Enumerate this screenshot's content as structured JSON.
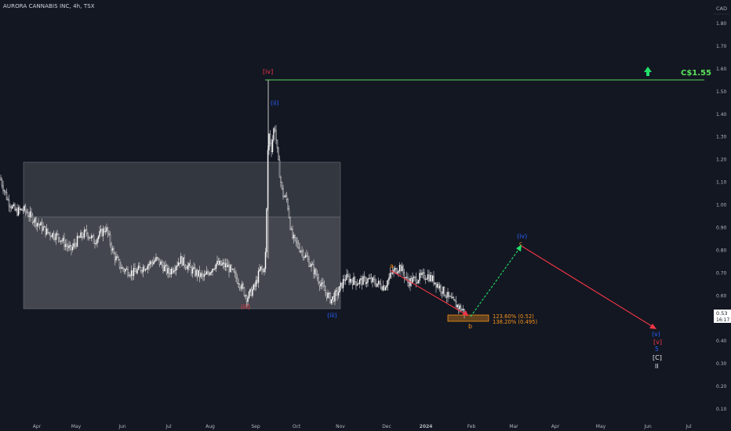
{
  "header": {
    "symbol_title": "AURORA CANNABIS INC, 4h, TSX"
  },
  "currency": "CAD",
  "colors": {
    "background": "#131722",
    "candle": "#ffffff",
    "grid_text": "#b2b5be",
    "target_line": "#4caf50",
    "target_text": "#5ae25a",
    "wave_red": "#f23645",
    "wave_blue": "#2962ff",
    "wave_orange": "#f7931a",
    "projection_green": "#22e06a",
    "box_upper": "#3a3d45",
    "box_lower": "#505359",
    "price_tag_bg": "#ffffff"
  },
  "chart_data": {
    "type": "candlestick",
    "timeframe": "4h",
    "x_ticks": [
      "Apr",
      "May",
      "Jun",
      "Jul",
      "Aug",
      "Sep",
      "Oct",
      "Nov",
      "Dec",
      "2024",
      "Feb",
      "Mar",
      "Apr",
      "May",
      "Jun",
      "Jul"
    ],
    "y_ticks": [
      "1.80",
      "1.70",
      "1.60",
      "1.50",
      "1.40",
      "1.30",
      "1.20",
      "1.10",
      "1.00",
      "0.90",
      "0.80",
      "0.70",
      "0.60",
      "0.50",
      "0.40",
      "0.30",
      "0.20",
      "0.10"
    ],
    "y_range": [
      0.05,
      1.9
    ],
    "y_scale": "linear",
    "grid": false,
    "price_series_approx": [
      {
        "month": "Mar",
        "price": 1.12
      },
      {
        "month": "Apr",
        "price": 0.98
      },
      {
        "month": "May",
        "price": 0.84
      },
      {
        "month": "Jun",
        "price": 0.74
      },
      {
        "month": "Jul",
        "price": 0.75
      },
      {
        "month": "Aug",
        "price": 0.63
      },
      {
        "month": "Sep",
        "price": 1.33
      },
      {
        "month": "Oct",
        "price": 0.76
      },
      {
        "month": "Nov",
        "price": 0.66
      },
      {
        "month": "Dec",
        "price": 0.7
      },
      {
        "month": "2024",
        "price": 0.63
      },
      {
        "month": "Feb",
        "price": 0.52
      }
    ],
    "last_price": "0.53",
    "countdown": "16:17",
    "target": {
      "label": "C$1.55",
      "price": 1.55
    },
    "fib_levels": [
      {
        "label": "123.60% (0.52)",
        "price": 0.52
      },
      {
        "label": "138.20% (0.495)",
        "price": 0.495
      }
    ],
    "wave_labels": [
      {
        "text": "[iv]",
        "color": "red",
        "price": 1.6
      },
      {
        "text": "(ii)",
        "color": "blue",
        "price": 1.48
      },
      {
        "text": "(iii)",
        "color": "red",
        "price": 0.57
      },
      {
        "text": "(iii)",
        "color": "blue",
        "price": 0.52
      },
      {
        "text": "a",
        "color": "orange",
        "price": 0.74
      },
      {
        "text": "b",
        "color": "orange",
        "price": 0.45
      },
      {
        "text": "c",
        "color": "orange",
        "price": 0.82
      },
      {
        "text": "(iv)",
        "color": "blue",
        "price": 0.86
      },
      {
        "text": "(v)",
        "color": "blue",
        "price": 0.43
      },
      {
        "text": "[v]",
        "color": "red",
        "price": 0.4
      },
      {
        "text": "5",
        "color": "blue",
        "price": 0.37
      },
      {
        "text": "[C]",
        "color": "white",
        "price": 0.33
      },
      {
        "text": "II",
        "color": "white",
        "price": 0.29
      }
    ]
  }
}
